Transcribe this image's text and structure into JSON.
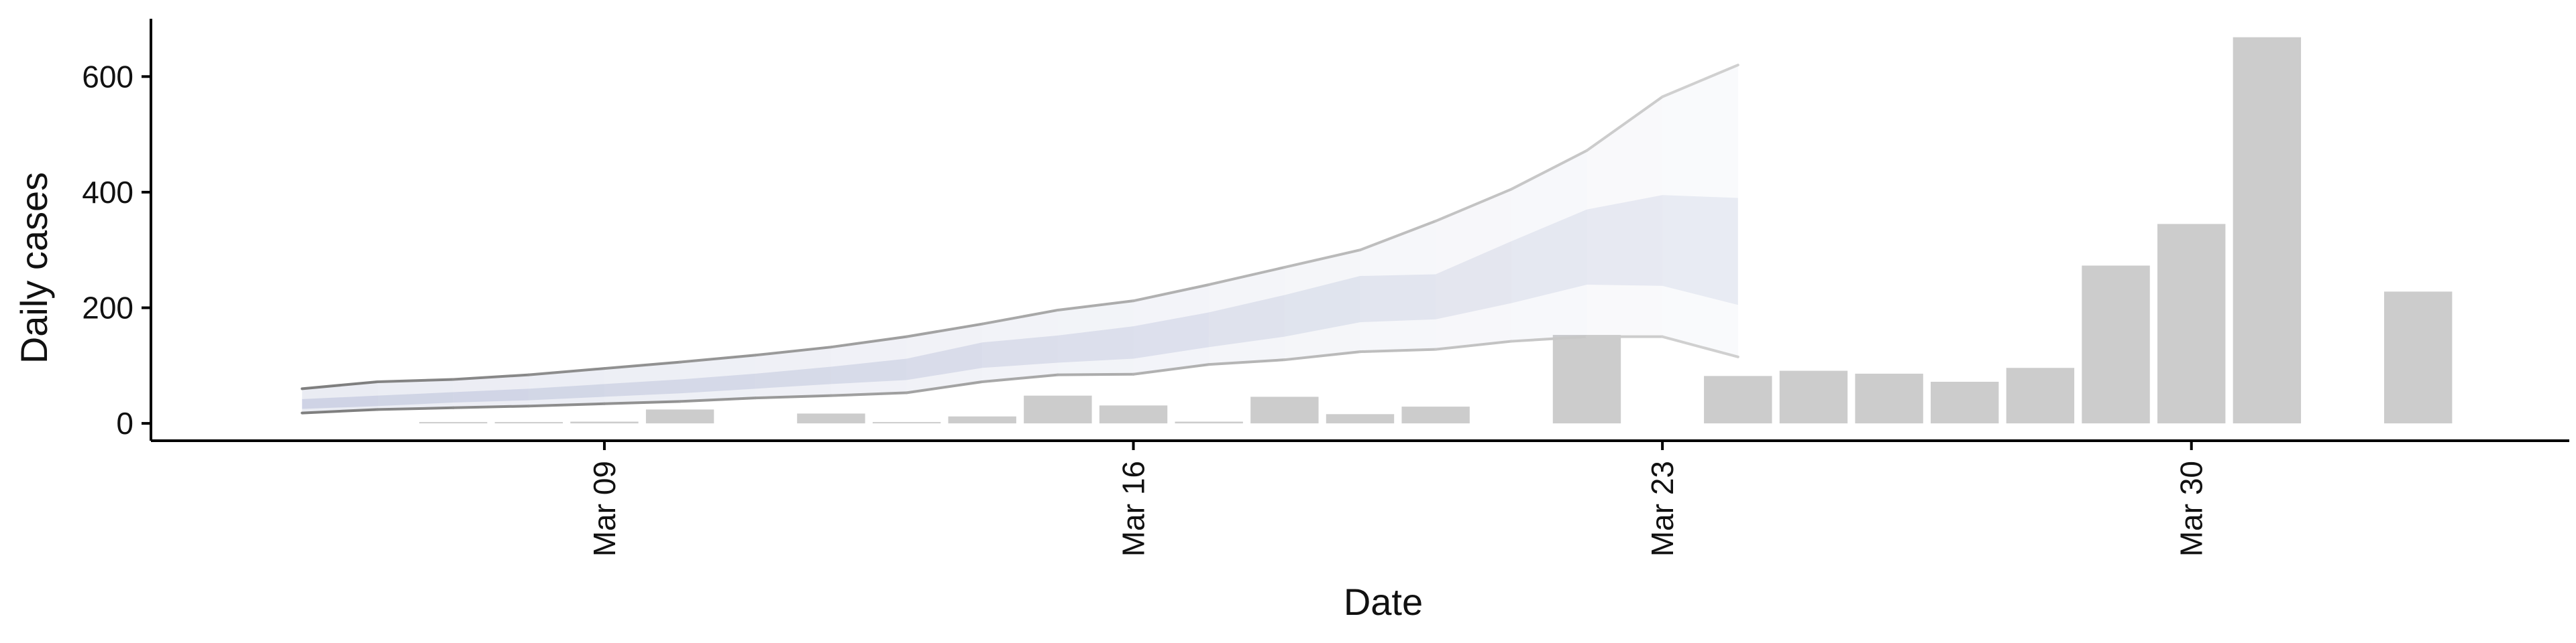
{
  "chart_data": {
    "type": "bar",
    "title": "",
    "xlabel": "Date",
    "ylabel": "Daily cases",
    "ylim": [
      -30,
      700
    ],
    "yticks": [
      0,
      200,
      400,
      600
    ],
    "x_range": [
      "2026-03-03",
      "2026-04-04"
    ],
    "xticks": [
      {
        "date": "2026-03-09",
        "label": "Mar 09"
      },
      {
        "date": "2026-03-16",
        "label": "Mar 16"
      },
      {
        "date": "2026-03-23",
        "label": "Mar 23"
      },
      {
        "date": "2026-03-30",
        "label": "Mar 30"
      }
    ],
    "grid": false,
    "legend": "none",
    "bars": {
      "color": "#cccccc",
      "points": [
        {
          "date": "2026-03-07",
          "value": 2
        },
        {
          "date": "2026-03-08",
          "value": 2
        },
        {
          "date": "2026-03-09",
          "value": 3
        },
        {
          "date": "2026-03-10",
          "value": 24
        },
        {
          "date": "2026-03-12",
          "value": 17
        },
        {
          "date": "2026-03-13",
          "value": 2
        },
        {
          "date": "2026-03-14",
          "value": 12
        },
        {
          "date": "2026-03-15",
          "value": 48
        },
        {
          "date": "2026-03-16",
          "value": 31
        },
        {
          "date": "2026-03-17",
          "value": 3
        },
        {
          "date": "2026-03-18",
          "value": 46
        },
        {
          "date": "2026-03-19",
          "value": 16
        },
        {
          "date": "2026-03-20",
          "value": 29
        },
        {
          "date": "2026-03-22",
          "value": 153
        },
        {
          "date": "2026-03-24",
          "value": 82
        },
        {
          "date": "2026-03-25",
          "value": 91
        },
        {
          "date": "2026-03-26",
          "value": 86
        },
        {
          "date": "2026-03-27",
          "value": 72
        },
        {
          "date": "2026-03-28",
          "value": 96
        },
        {
          "date": "2026-03-29",
          "value": 273
        },
        {
          "date": "2026-03-30",
          "value": 345
        },
        {
          "date": "2026-03-31",
          "value": 668
        },
        {
          "date": "2026-04-02",
          "value": 228
        }
      ]
    },
    "estimate": {
      "band_color": "#b8bfd8",
      "dates": [
        "2026-03-05",
        "2026-03-06",
        "2026-03-07",
        "2026-03-08",
        "2026-03-09",
        "2026-03-10",
        "2026-03-11",
        "2026-03-12",
        "2026-03-13",
        "2026-03-14",
        "2026-03-15",
        "2026-03-16",
        "2026-03-17",
        "2026-03-18",
        "2026-03-19",
        "2026-03-20",
        "2026-03-21",
        "2026-03-22",
        "2026-03-23",
        "2026-03-24"
      ],
      "outer_upper": [
        60,
        72,
        76,
        84,
        95,
        106,
        118,
        132,
        150,
        172,
        196,
        212,
        240,
        270,
        300,
        350,
        405,
        472,
        565,
        620
      ],
      "outer_lower": [
        18,
        24,
        27,
        30,
        34,
        38,
        44,
        48,
        53,
        72,
        84,
        85,
        102,
        110,
        124,
        128,
        142,
        150,
        150,
        115
      ],
      "inner_upper": [
        42,
        48,
        54,
        60,
        68,
        76,
        86,
        98,
        112,
        140,
        152,
        168,
        192,
        222,
        255,
        258,
        315,
        370,
        395,
        390
      ],
      "inner_lower": [
        25,
        30,
        36,
        40,
        46,
        52,
        60,
        68,
        75,
        96,
        105,
        112,
        132,
        150,
        175,
        180,
        208,
        240,
        238,
        205
      ],
      "line_color_early": "#7f7f7f",
      "line_color_late": "#d0d0d0"
    }
  }
}
